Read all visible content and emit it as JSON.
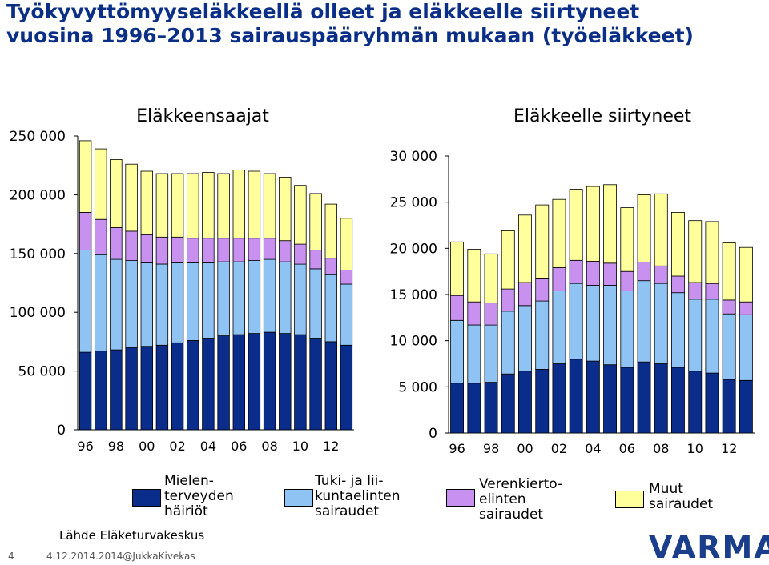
{
  "title_line1": "Työkyvyttömyyseläkkeellä olleet ja eläkkeelle siirtyneet",
  "title_line2": "vuosina 1996–2013 sairauspääryhmän mukaan (työeläkkeet)",
  "source": "Lähde Eläketurvakeskus",
  "footer_page": "4",
  "footer_date": "4.12.2014.2014@JukkaKivekas",
  "logo": "VARMA",
  "colors": {
    "mental": "#0a2d8c",
    "musculo": "#8fc3f4",
    "circulatory": "#c991ef",
    "other": "#ffff9c"
  },
  "legend": [
    {
      "key": "mental",
      "label": "Mielen-\nterveyden\nhäiriöt"
    },
    {
      "key": "musculo",
      "label": "Tuki- ja lii-\nkuntaelinten\nsairaudet"
    },
    {
      "key": "circulatory",
      "label": "Verenkierto-\nelinten\nsairaudet"
    },
    {
      "key": "other",
      "label": "Muut\nsairaudet"
    }
  ],
  "chart_data": [
    {
      "type": "bar",
      "stacked": true,
      "title": "Eläkkeensaajat",
      "categories": [
        "96",
        "97",
        "98",
        "99",
        "00",
        "01",
        "02",
        "03",
        "04",
        "05",
        "06",
        "07",
        "08",
        "09",
        "10",
        "11",
        "12",
        "13"
      ],
      "tick_labels": [
        "96",
        "98",
        "00",
        "02",
        "04",
        "06",
        "08",
        "10",
        "12"
      ],
      "y_ticks": [
        "0",
        "50 000",
        "100 000",
        "150 000",
        "200 000",
        "250 000"
      ],
      "ylim": [
        0,
        250000
      ],
      "grid": false,
      "series": [
        {
          "key": "mental",
          "name": "Mielenterveyden häiriöt",
          "values": [
            66000,
            67000,
            68000,
            70000,
            71000,
            72000,
            74000,
            76000,
            78000,
            80000,
            81000,
            82000,
            83000,
            82000,
            81000,
            78000,
            75000,
            72000
          ]
        },
        {
          "key": "musculo",
          "name": "Tuki- ja liikuntaelinten sairaudet",
          "values": [
            87000,
            82000,
            77000,
            74000,
            71000,
            69000,
            68000,
            66000,
            64000,
            63000,
            62000,
            62000,
            62000,
            61000,
            60000,
            59000,
            57000,
            52000
          ]
        },
        {
          "key": "circulatory",
          "name": "Verenkiertoelinten sairaudet",
          "values": [
            32000,
            30000,
            27000,
            25000,
            24000,
            23000,
            22000,
            21000,
            21000,
            20000,
            20000,
            19000,
            18000,
            18000,
            17000,
            16000,
            14000,
            12000
          ]
        },
        {
          "key": "other",
          "name": "Muut sairaudet",
          "values": [
            61000,
            60000,
            58000,
            57000,
            54000,
            54000,
            54000,
            55000,
            56000,
            55000,
            58000,
            57000,
            55000,
            54000,
            50000,
            48000,
            46000,
            44000
          ]
        }
      ]
    },
    {
      "type": "bar",
      "stacked": true,
      "title": "Eläkkeelle siirtyneet",
      "categories": [
        "96",
        "97",
        "98",
        "99",
        "00",
        "01",
        "02",
        "03",
        "04",
        "05",
        "06",
        "07",
        "08",
        "09",
        "10",
        "11",
        "12",
        "13"
      ],
      "tick_labels": [
        "96",
        "98",
        "00",
        "02",
        "04",
        "06",
        "08",
        "10",
        "12"
      ],
      "y_ticks": [
        "0",
        "5 000",
        "10 000",
        "15 000",
        "20 000",
        "25 000",
        "30 000"
      ],
      "ylim": [
        0,
        30000
      ],
      "grid": false,
      "series": [
        {
          "key": "mental",
          "name": "Mielenterveyden häiriöt",
          "values": [
            5400,
            5400,
            5500,
            6400,
            6700,
            6900,
            7500,
            8000,
            7800,
            7400,
            7100,
            7700,
            7500,
            7100,
            6700,
            6500,
            5800,
            5700
          ]
        },
        {
          "key": "musculo",
          "name": "Tuki- ja liikuntaelinten sairaudet",
          "values": [
            6800,
            6300,
            6200,
            6800,
            7100,
            7400,
            7900,
            8200,
            8200,
            8600,
            8300,
            8800,
            8700,
            8100,
            7800,
            8000,
            7100,
            7100
          ]
        },
        {
          "key": "circulatory",
          "name": "Verenkiertoelinten sairaudet",
          "values": [
            2700,
            2500,
            2400,
            2400,
            2500,
            2400,
            2500,
            2500,
            2600,
            2400,
            2100,
            2000,
            1900,
            1800,
            1800,
            1700,
            1500,
            1400
          ]
        },
        {
          "key": "other",
          "name": "Muut sairaudet",
          "values": [
            5800,
            5700,
            5300,
            6300,
            7300,
            8000,
            7400,
            7700,
            8100,
            8500,
            6900,
            7300,
            7800,
            6900,
            6700,
            6700,
            6200,
            5900
          ]
        }
      ]
    }
  ]
}
